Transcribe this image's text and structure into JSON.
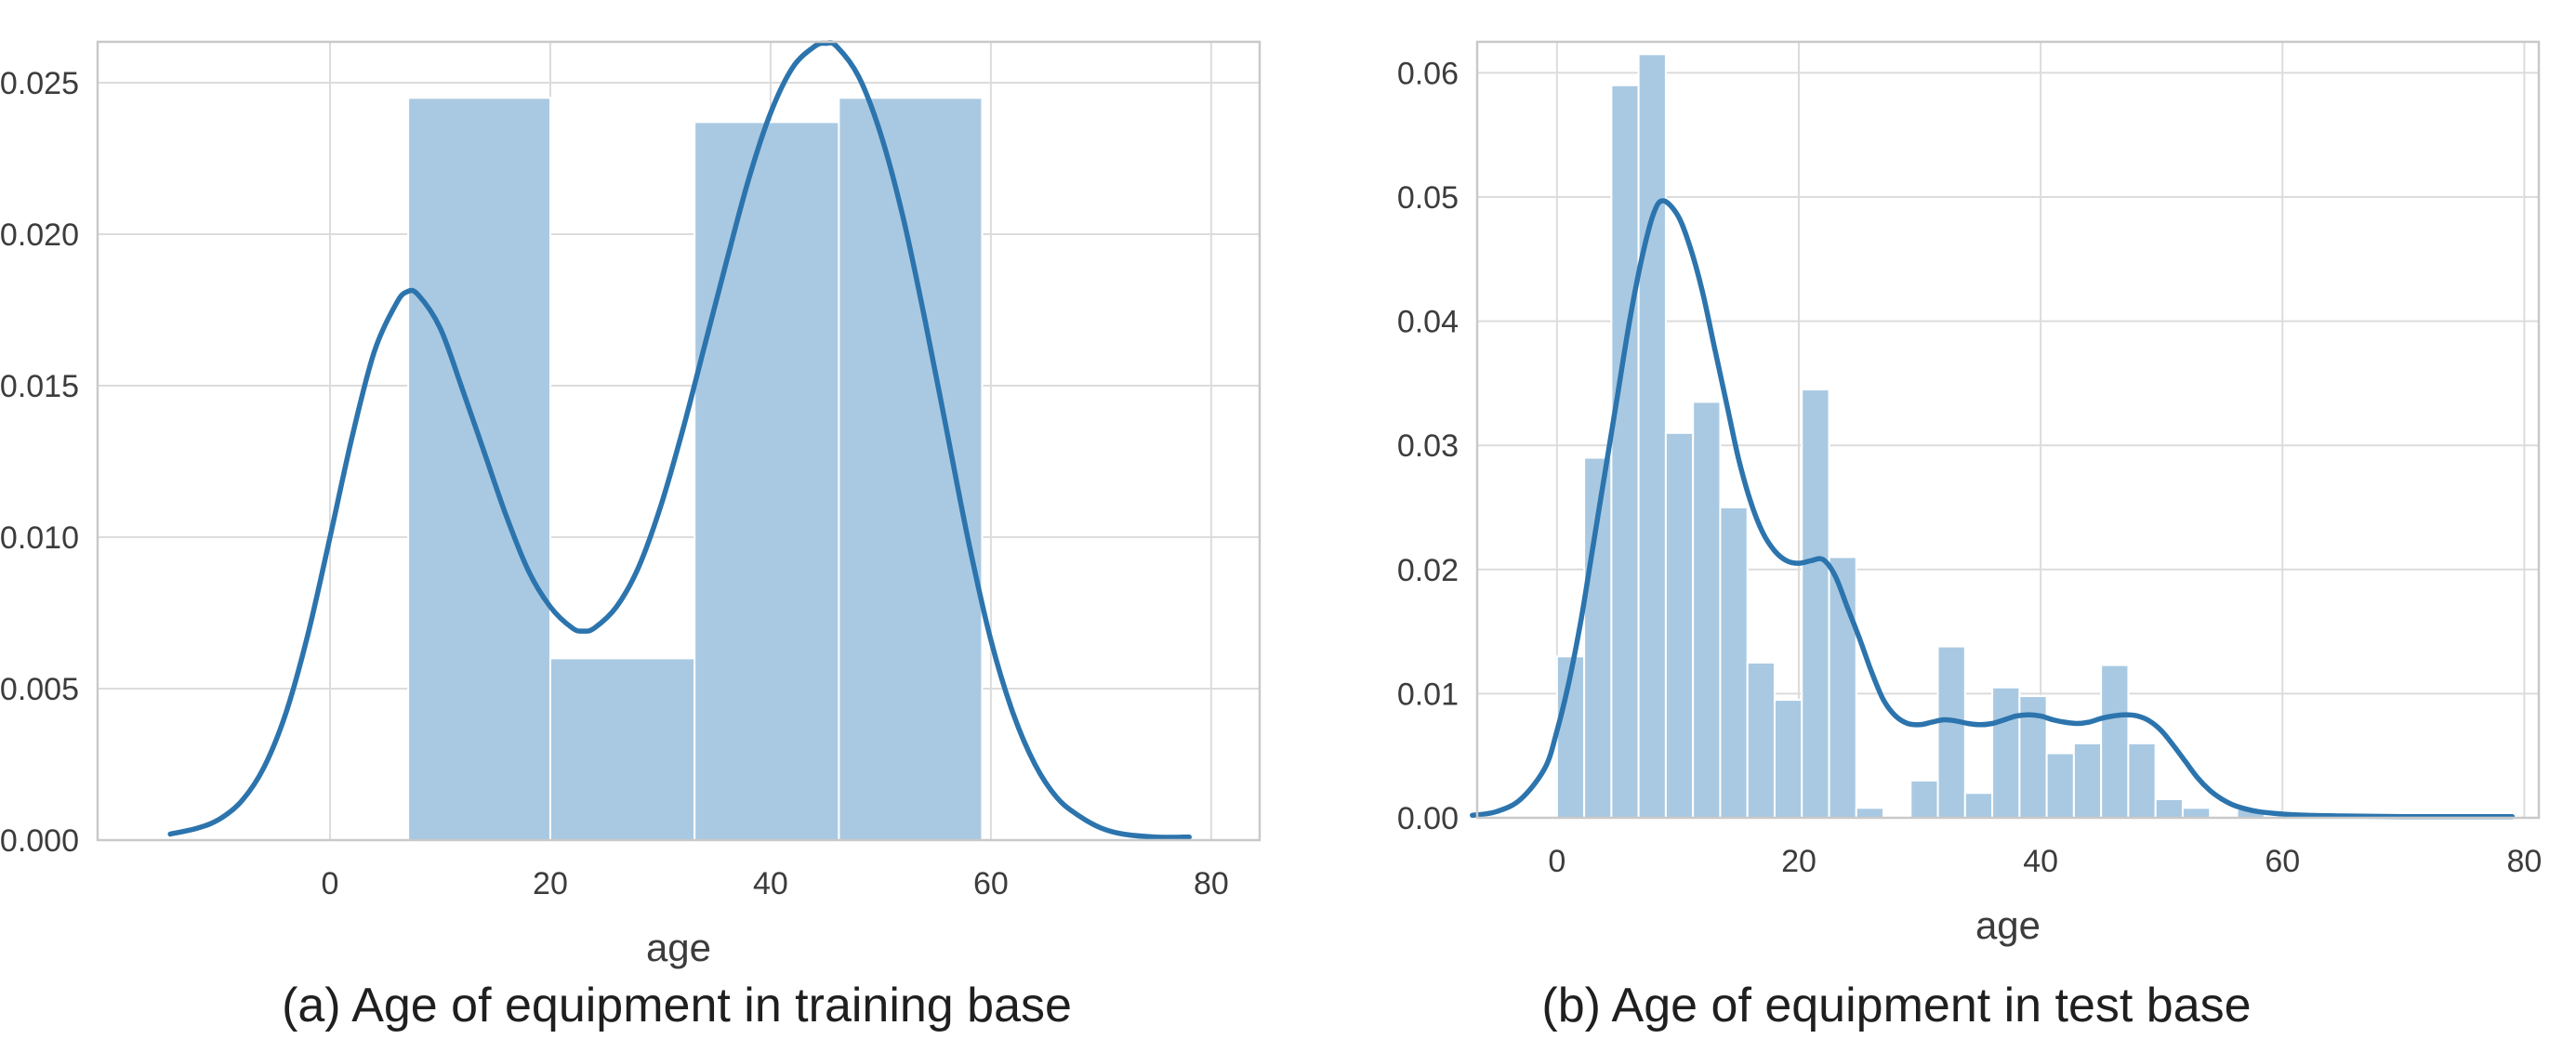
{
  "colors": {
    "kde_line": "#2c74ad",
    "bar_fill": "#a9c9e2",
    "bar_edge": "#ffffff",
    "grid": "#dcdcdc",
    "spine": "#c9c9c9",
    "plot_bg": "#ffffff",
    "tick_text": "#3c3c3c",
    "axis_label_text": "#3c3c3c",
    "caption_text": "#1f1f1f"
  },
  "captions": {
    "left": "(a) Age of equipment in training base",
    "right": "(b) Age of equipment in test base"
  },
  "chart_data": [
    {
      "type": "histogram+kde",
      "title": "",
      "xlabel": "age",
      "ylabel": "",
      "grid": true,
      "legend": false,
      "xlim": [
        -21.1,
        84.4
      ],
      "ylim": [
        0,
        0.02635
      ],
      "xticks": [
        0,
        20,
        40,
        60,
        80
      ],
      "xtick_labels": [
        "0",
        "20",
        "40",
        "60",
        "80"
      ],
      "yticks": [
        0.0,
        0.005,
        0.01,
        0.015,
        0.02,
        0.025
      ],
      "ytick_labels": [
        "0.000",
        "0.005",
        "0.010",
        "0.015",
        "0.020",
        "0.025"
      ],
      "bars": [
        {
          "x0": 7.1,
          "x1": 20.0,
          "h": 0.0245
        },
        {
          "x0": 20.0,
          "x1": 33.1,
          "h": 0.006
        },
        {
          "x0": 33.1,
          "x1": 46.2,
          "h": 0.0237
        },
        {
          "x0": 46.2,
          "x1": 59.2,
          "h": 0.0245
        }
      ],
      "kde": [
        [
          -14.5,
          0.0002
        ],
        [
          -12,
          0.0004
        ],
        [
          -10,
          0.0007
        ],
        [
          -8,
          0.0013
        ],
        [
          -6,
          0.0024
        ],
        [
          -4,
          0.0042
        ],
        [
          -2,
          0.0068
        ],
        [
          0,
          0.01
        ],
        [
          2,
          0.0133
        ],
        [
          4,
          0.0161
        ],
        [
          6,
          0.0177
        ],
        [
          7,
          0.0181
        ],
        [
          8,
          0.018
        ],
        [
          10,
          0.0169
        ],
        [
          12,
          0.0149
        ],
        [
          14,
          0.0128
        ],
        [
          16,
          0.0107
        ],
        [
          18,
          0.0089
        ],
        [
          20,
          0.0077
        ],
        [
          22,
          0.007
        ],
        [
          23,
          0.0069
        ],
        [
          24,
          0.007
        ],
        [
          26,
          0.0077
        ],
        [
          28,
          0.009
        ],
        [
          30,
          0.011
        ],
        [
          32,
          0.0135
        ],
        [
          34,
          0.0163
        ],
        [
          36,
          0.0191
        ],
        [
          38,
          0.0218
        ],
        [
          40,
          0.024
        ],
        [
          42,
          0.0255
        ],
        [
          44,
          0.0262
        ],
        [
          45,
          0.0263
        ],
        [
          46,
          0.0262
        ],
        [
          48,
          0.0252
        ],
        [
          50,
          0.0233
        ],
        [
          52,
          0.0206
        ],
        [
          54,
          0.0172
        ],
        [
          56,
          0.0135
        ],
        [
          58,
          0.0098
        ],
        [
          60,
          0.0066
        ],
        [
          62,
          0.0042
        ],
        [
          64,
          0.0025
        ],
        [
          66,
          0.0014
        ],
        [
          68,
          0.0008
        ],
        [
          70,
          0.0004
        ],
        [
          72,
          0.0002
        ],
        [
          75,
          0.0001
        ],
        [
          78,
          0.0001
        ]
      ]
    },
    {
      "type": "histogram+kde",
      "title": "",
      "xlabel": "age",
      "ylabel": "",
      "grid": true,
      "legend": false,
      "xlim": [
        -6.6,
        81.2
      ],
      "ylim": [
        0,
        0.0625
      ],
      "xticks": [
        0,
        20,
        40,
        60,
        80
      ],
      "xtick_labels": [
        "0",
        "20",
        "40",
        "60",
        "80"
      ],
      "yticks": [
        0.0,
        0.01,
        0.02,
        0.03,
        0.04,
        0.05,
        0.06
      ],
      "ytick_labels": [
        "0.00",
        "0.01",
        "0.02",
        "0.03",
        "0.04",
        "0.05",
        "0.06"
      ],
      "bars": [
        {
          "x0": 0.0,
          "x1": 2.25,
          "h": 0.013
        },
        {
          "x0": 2.25,
          "x1": 4.5,
          "h": 0.029
        },
        {
          "x0": 4.5,
          "x1": 6.75,
          "h": 0.059
        },
        {
          "x0": 6.75,
          "x1": 9.0,
          "h": 0.0615
        },
        {
          "x0": 9.0,
          "x1": 11.25,
          "h": 0.031
        },
        {
          "x0": 11.25,
          "x1": 13.5,
          "h": 0.0335
        },
        {
          "x0": 13.5,
          "x1": 15.75,
          "h": 0.025
        },
        {
          "x0": 15.75,
          "x1": 18.0,
          "h": 0.0125
        },
        {
          "x0": 18.0,
          "x1": 20.25,
          "h": 0.0095
        },
        {
          "x0": 20.25,
          "x1": 22.5,
          "h": 0.0345
        },
        {
          "x0": 22.5,
          "x1": 24.75,
          "h": 0.021
        },
        {
          "x0": 24.75,
          "x1": 27.0,
          "h": 0.0008
        },
        {
          "x0": 29.25,
          "x1": 31.5,
          "h": 0.003
        },
        {
          "x0": 31.5,
          "x1": 33.75,
          "h": 0.0138
        },
        {
          "x0": 33.75,
          "x1": 36.0,
          "h": 0.002
        },
        {
          "x0": 36.0,
          "x1": 38.25,
          "h": 0.0105
        },
        {
          "x0": 38.25,
          "x1": 40.5,
          "h": 0.0098
        },
        {
          "x0": 40.5,
          "x1": 42.75,
          "h": 0.0052
        },
        {
          "x0": 42.75,
          "x1": 45.0,
          "h": 0.006
        },
        {
          "x0": 45.0,
          "x1": 47.25,
          "h": 0.0123
        },
        {
          "x0": 47.25,
          "x1": 49.5,
          "h": 0.006
        },
        {
          "x0": 49.5,
          "x1": 51.75,
          "h": 0.0015
        },
        {
          "x0": 51.75,
          "x1": 54.0,
          "h": 0.0008
        },
        {
          "x0": 56.25,
          "x1": 58.5,
          "h": 0.0007
        }
      ],
      "kde": [
        [
          -7,
          0.0002
        ],
        [
          -5,
          0.0005
        ],
        [
          -3,
          0.0015
        ],
        [
          -1,
          0.004
        ],
        [
          0,
          0.007
        ],
        [
          1,
          0.011
        ],
        [
          2,
          0.016
        ],
        [
          3,
          0.022
        ],
        [
          4,
          0.028
        ],
        [
          5,
          0.034
        ],
        [
          6,
          0.04
        ],
        [
          7,
          0.045
        ],
        [
          8,
          0.0487
        ],
        [
          8.8,
          0.0497
        ],
        [
          10,
          0.0485
        ],
        [
          11,
          0.046
        ],
        [
          12,
          0.0425
        ],
        [
          13,
          0.038
        ],
        [
          14,
          0.0335
        ],
        [
          15,
          0.029
        ],
        [
          16,
          0.0255
        ],
        [
          17,
          0.023
        ],
        [
          18,
          0.0215
        ],
        [
          19,
          0.0207
        ],
        [
          20,
          0.0205
        ],
        [
          21,
          0.0207
        ],
        [
          22,
          0.0208
        ],
        [
          23,
          0.0195
        ],
        [
          24,
          0.017
        ],
        [
          25,
          0.0145
        ],
        [
          26,
          0.0118
        ],
        [
          27,
          0.0095
        ],
        [
          28,
          0.0082
        ],
        [
          29,
          0.0076
        ],
        [
          30,
          0.0075
        ],
        [
          31,
          0.0077
        ],
        [
          32,
          0.0079
        ],
        [
          33,
          0.0078
        ],
        [
          34,
          0.0076
        ],
        [
          35,
          0.0075
        ],
        [
          36,
          0.0076
        ],
        [
          37,
          0.0079
        ],
        [
          38,
          0.0082
        ],
        [
          39,
          0.0083
        ],
        [
          40,
          0.0082
        ],
        [
          41,
          0.0079
        ],
        [
          42,
          0.0077
        ],
        [
          43,
          0.0076
        ],
        [
          44,
          0.0077
        ],
        [
          45,
          0.008
        ],
        [
          46,
          0.0082
        ],
        [
          47,
          0.0083
        ],
        [
          48,
          0.0082
        ],
        [
          49,
          0.0078
        ],
        [
          50,
          0.007
        ],
        [
          51,
          0.0058
        ],
        [
          52,
          0.0045
        ],
        [
          53,
          0.0032
        ],
        [
          54,
          0.0022
        ],
        [
          55,
          0.0015
        ],
        [
          56,
          0.001
        ],
        [
          57,
          0.0007
        ],
        [
          58,
          0.0005
        ],
        [
          60,
          0.0003
        ],
        [
          62,
          0.0002
        ],
        [
          65,
          0.00015
        ],
        [
          70,
          0.0001
        ],
        [
          75,
          0.0001
        ],
        [
          79,
          0.0001
        ]
      ]
    }
  ]
}
